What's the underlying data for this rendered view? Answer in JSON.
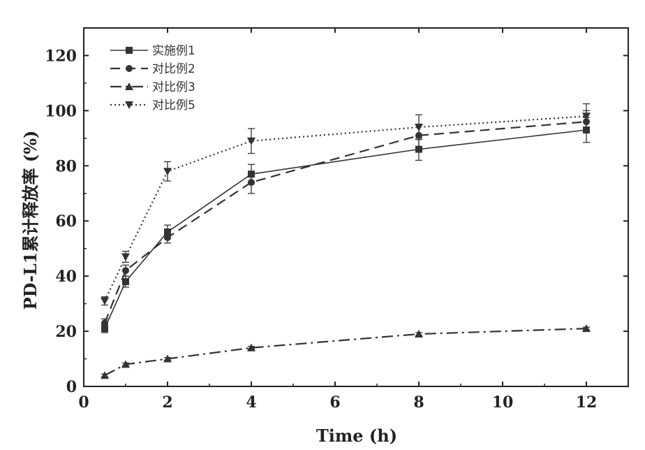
{
  "chart_data": {
    "type": "line",
    "xlabel": "Time (h)",
    "ylabel": "PD-L1累计释放率 (%)",
    "xlim": [
      0,
      13
    ],
    "ylim": [
      0,
      130
    ],
    "x_ticks": [
      0,
      2,
      4,
      6,
      8,
      10,
      12
    ],
    "y_ticks": [
      0,
      20,
      40,
      60,
      80,
      100,
      120
    ],
    "legend_position": "top-left",
    "x": [
      0.5,
      1,
      2,
      4,
      8,
      12
    ],
    "series": [
      {
        "name": "实施例1",
        "values": [
          21,
          38,
          56,
          77,
          86,
          93
        ],
        "errors": [
          1.5,
          2,
          2.5,
          3.5,
          4,
          4.5
        ],
        "marker": "square",
        "dash": "solid"
      },
      {
        "name": "对比例2",
        "values": [
          23,
          42,
          54,
          74,
          91,
          96
        ],
        "errors": [
          1.5,
          2,
          2,
          4,
          4,
          4
        ],
        "marker": "circle",
        "dash": "dash"
      },
      {
        "name": "对比例3",
        "values": [
          4,
          8,
          10,
          14,
          19,
          21
        ],
        "errors": [
          0.5,
          0.5,
          0.5,
          0.5,
          0.5,
          0.5
        ],
        "marker": "triangle-up",
        "dash": "dashdot"
      },
      {
        "name": "对比例5",
        "values": [
          31,
          47,
          78,
          89,
          94,
          98
        ],
        "errors": [
          1.5,
          2,
          3.5,
          4.5,
          4.5,
          4.5
        ],
        "marker": "triangle-down",
        "dash": "dot"
      }
    ]
  },
  "colors": {
    "line": "#333333",
    "axis": "#222222",
    "background": "#ffffff"
  }
}
